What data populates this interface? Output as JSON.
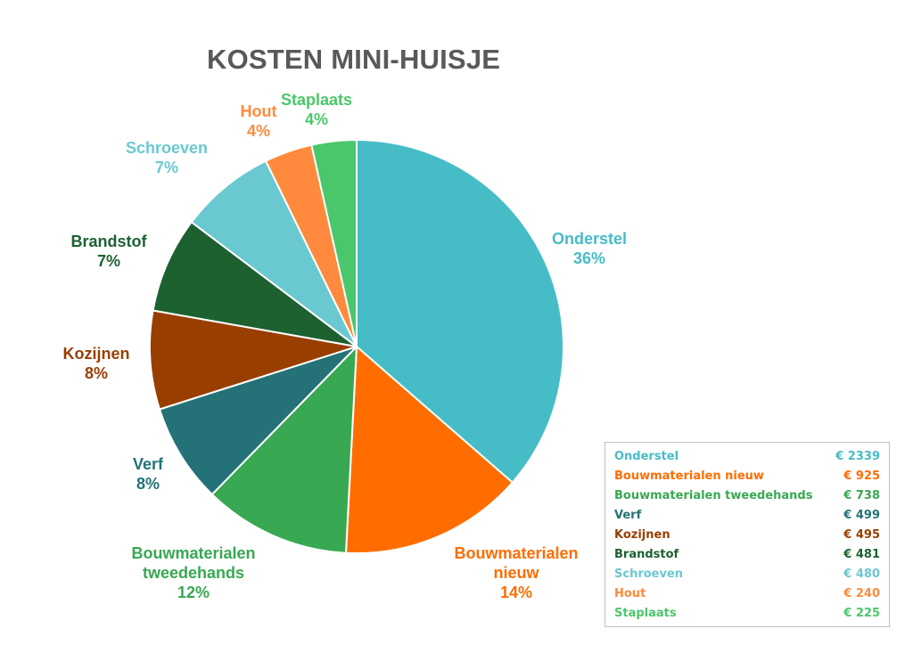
{
  "chart_data": {
    "type": "pie",
    "title": "KOSTEN MINI-HUISJE",
    "currency": "€",
    "slices": [
      {
        "name": "Onderstel",
        "label": "Onderstel",
        "value": 2339,
        "percent": "36%",
        "color": "#46bcc6"
      },
      {
        "name": "Bouwmaterialen nieuw",
        "label": "Bouwmaterialen\nnieuw",
        "value": 925,
        "percent": "14%",
        "color": "#ff6d00"
      },
      {
        "name": "Bouwmaterialen tweedehands",
        "label": "Bouwmaterialen\ntweedehands",
        "value": 738,
        "percent": "12%",
        "color": "#38a852"
      },
      {
        "name": "Verf",
        "label": "Verf",
        "value": 499,
        "percent": "8%",
        "color": "#247277"
      },
      {
        "name": "Kozijnen",
        "label": "Kozijnen",
        "value": 495,
        "percent": "8%",
        "color": "#983f00"
      },
      {
        "name": "Brandstof",
        "label": "Brandstof",
        "value": 481,
        "percent": "7%",
        "color": "#1d6131"
      },
      {
        "name": "Schroeven",
        "label": "Schroeven",
        "value": 480,
        "percent": "7%",
        "color": "#6ac8d0"
      },
      {
        "name": "Hout",
        "label": "Hout",
        "value": 240,
        "percent": "4%",
        "color": "#ff8a3d"
      },
      {
        "name": "Staplaats",
        "label": "Staplaats",
        "value": 225,
        "percent": "4%",
        "color": "#4ac76a"
      }
    ],
    "legend": "table bottom-right",
    "grid": false
  }
}
